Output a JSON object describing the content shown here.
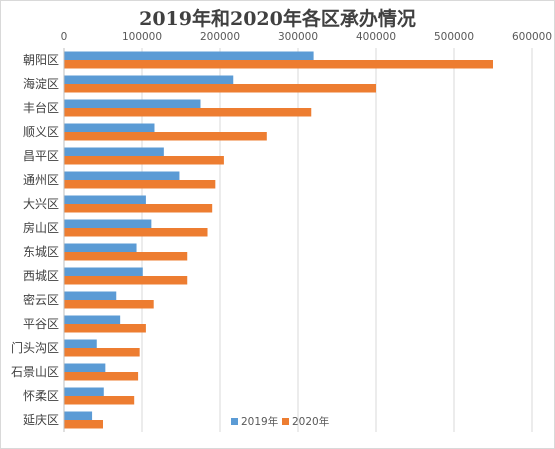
{
  "chart_data": {
    "type": "bar",
    "orientation": "horizontal",
    "title": "2019年和2020年各区承办情况",
    "xlabel": "",
    "ylabel": "",
    "xlim": [
      0,
      600000
    ],
    "xticks": [
      0,
      100000,
      200000,
      300000,
      400000,
      500000,
      600000
    ],
    "x_axis_position": "top",
    "grid": true,
    "legend_position": "bottom",
    "categories": [
      "朝阳区",
      "海淀区",
      "丰台区",
      "顺义区",
      "昌平区",
      "通州区",
      "大兴区",
      "房山区",
      "东城区",
      "西城区",
      "密云区",
      "平谷区",
      "门头沟区",
      "石景山区",
      "怀柔区",
      "延庆区"
    ],
    "series": [
      {
        "name": "2019年",
        "color": "#5b9bd5",
        "values": [
          320000,
          217000,
          175000,
          116000,
          128000,
          148000,
          105000,
          112000,
          93000,
          101000,
          67000,
          72000,
          42000,
          53000,
          51000,
          36000
        ]
      },
      {
        "name": "2020年",
        "color": "#ed7d31",
        "values": [
          550000,
          400000,
          317000,
          260000,
          205000,
          194000,
          190000,
          184000,
          158000,
          158000,
          115000,
          105000,
          97000,
          95000,
          90000,
          50000
        ]
      }
    ]
  }
}
